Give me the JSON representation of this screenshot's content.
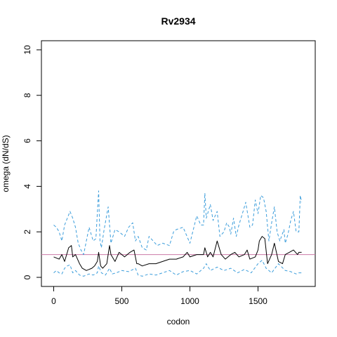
{
  "chart_data": {
    "type": "line",
    "title": "Rv2934",
    "xlabel": "codon",
    "ylabel": "omega (dN/dS)",
    "xlim": [
      -90,
      1920
    ],
    "ylim": [
      -0.4,
      10.4
    ],
    "xticks": [
      0,
      500,
      1000,
      1500
    ],
    "yticks": [
      0,
      2,
      4,
      6,
      8,
      10
    ],
    "grid": false,
    "legend": "none",
    "reference_line": {
      "y": 1,
      "color": "#cc79a7"
    },
    "series": [
      {
        "role": "estimate",
        "color": "#000000",
        "style": "solid",
        "x": [
          0,
          40,
          60,
          80,
          100,
          110,
          130,
          140,
          160,
          190,
          210,
          240,
          280,
          300,
          320,
          330,
          345,
          360,
          390,
          410,
          420,
          450,
          480,
          520,
          560,
          590,
          610,
          620,
          650,
          700,
          750,
          800,
          850,
          900,
          950,
          980,
          1000,
          1050,
          1100,
          1110,
          1130,
          1150,
          1170,
          1200,
          1230,
          1260,
          1300,
          1330,
          1360,
          1400,
          1420,
          1440,
          1480,
          1500,
          1510,
          1530,
          1550,
          1570,
          1600,
          1620,
          1650,
          1680,
          1700,
          1730,
          1760,
          1790,
          1800,
          1820
        ],
        "y": [
          0.9,
          0.8,
          1.0,
          0.7,
          1.1,
          1.3,
          1.4,
          0.9,
          1.0,
          0.6,
          0.4,
          0.3,
          0.4,
          0.5,
          0.7,
          1.1,
          0.5,
          0.4,
          0.6,
          1.4,
          1.0,
          0.7,
          1.1,
          0.9,
          1.1,
          1.2,
          0.6,
          0.6,
          0.5,
          0.6,
          0.6,
          0.7,
          0.8,
          0.8,
          0.9,
          1.1,
          0.9,
          1.0,
          1.0,
          1.3,
          0.9,
          1.1,
          0.9,
          1.6,
          1.0,
          0.8,
          1.0,
          1.1,
          0.9,
          1.0,
          1.2,
          0.8,
          0.9,
          1.2,
          1.6,
          1.8,
          1.7,
          0.6,
          1.0,
          1.5,
          0.7,
          0.6,
          1.0,
          1.1,
          1.2,
          1.0,
          1.1,
          1.1
        ]
      },
      {
        "role": "upper",
        "color": "#3b9ddb",
        "style": "dashed",
        "x": [
          0,
          20,
          40,
          60,
          80,
          100,
          120,
          140,
          160,
          180,
          200,
          220,
          240,
          260,
          290,
          310,
          320,
          330,
          340,
          350,
          370,
          400,
          420,
          450,
          480,
          520,
          550,
          580,
          600,
          620,
          650,
          680,
          700,
          730,
          760,
          800,
          850,
          880,
          900,
          950,
          1000,
          1050,
          1080,
          1100,
          1110,
          1120,
          1150,
          1170,
          1200,
          1220,
          1250,
          1270,
          1290,
          1300,
          1320,
          1340,
          1360,
          1390,
          1410,
          1440,
          1460,
          1480,
          1500,
          1520,
          1540,
          1560,
          1580,
          1600,
          1620,
          1640,
          1660,
          1690,
          1700,
          1720,
          1740,
          1760,
          1780,
          1800,
          1810,
          1820
        ],
        "y": [
          2.3,
          2.2,
          2.0,
          1.6,
          2.3,
          2.6,
          2.9,
          2.6,
          2.2,
          1.5,
          1.2,
          1.0,
          1.6,
          2.2,
          1.6,
          1.7,
          2.8,
          3.8,
          1.6,
          1.3,
          2.1,
          3.1,
          1.5,
          2.1,
          2.0,
          1.8,
          2.2,
          2.4,
          1.6,
          1.8,
          1.3,
          1.2,
          1.8,
          1.6,
          1.4,
          1.5,
          1.4,
          2.0,
          2.1,
          2.2,
          1.5,
          2.7,
          2.3,
          2.3,
          3.7,
          2.6,
          3.2,
          2.5,
          2.9,
          1.8,
          2.0,
          2.4,
          2.2,
          1.9,
          2.6,
          1.8,
          2.3,
          2.9,
          3.3,
          2.2,
          2.3,
          3.4,
          2.8,
          3.6,
          3.5,
          2.9,
          1.6,
          2.4,
          3.1,
          2.0,
          1.6,
          2.1,
          1.5,
          1.9,
          2.5,
          2.9,
          2.0,
          2.0,
          3.6,
          3.3
        ]
      },
      {
        "role": "lower",
        "color": "#3b9ddb",
        "style": "dashed",
        "x": [
          0,
          20,
          40,
          60,
          80,
          100,
          120,
          140,
          160,
          190,
          220,
          240,
          260,
          290,
          320,
          330,
          350,
          380,
          410,
          430,
          460,
          500,
          550,
          600,
          620,
          650,
          700,
          750,
          800,
          850,
          900,
          950,
          1000,
          1050,
          1100,
          1120,
          1150,
          1200,
          1250,
          1300,
          1350,
          1400,
          1450,
          1500,
          1530,
          1560,
          1600,
          1650,
          1700,
          1740,
          1780,
          1800,
          1820
        ],
        "y": [
          0.2,
          0.3,
          0.2,
          0.15,
          0.4,
          0.5,
          0.55,
          0.2,
          0.3,
          0.1,
          0.05,
          0.1,
          0.15,
          0.1,
          0.2,
          0.5,
          0.2,
          0.1,
          0.4,
          0.15,
          0.2,
          0.3,
          0.25,
          0.4,
          0.1,
          0.05,
          0.15,
          0.1,
          0.2,
          0.3,
          0.1,
          0.25,
          0.3,
          0.15,
          0.4,
          0.6,
          0.3,
          0.45,
          0.3,
          0.4,
          0.2,
          0.35,
          0.2,
          0.6,
          0.75,
          0.4,
          0.2,
          0.6,
          0.3,
          0.25,
          0.15,
          0.2,
          0.2
        ]
      }
    ]
  }
}
